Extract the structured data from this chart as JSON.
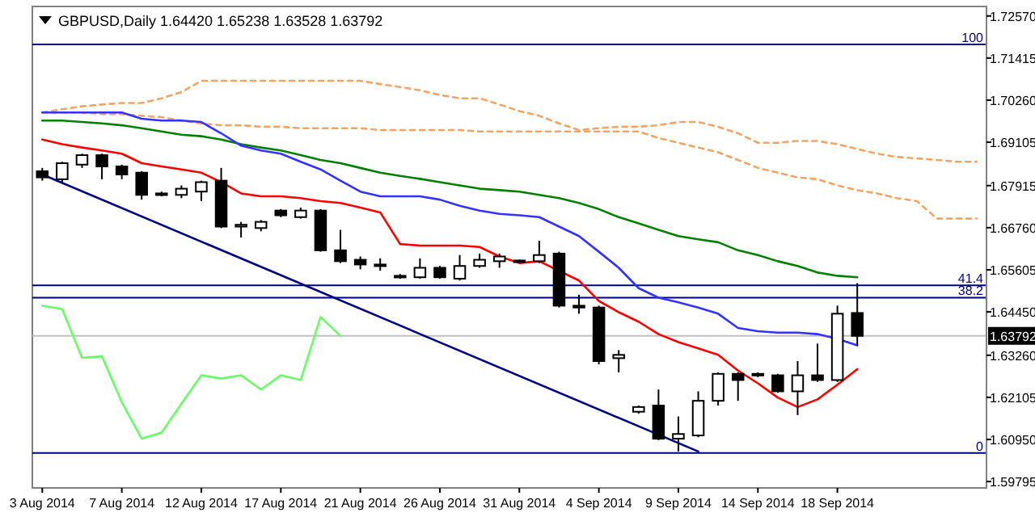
{
  "chart_data": {
    "type": "candlestick",
    "title": "GBPUSD,Daily 1.64420 1.65238 1.63528 1.63792",
    "categories": [
      "3 Aug 2014",
      null,
      null,
      null,
      "7 Aug 2014",
      null,
      null,
      null,
      "12 Aug 2014",
      null,
      null,
      null,
      "17 Aug 2014",
      null,
      null,
      null,
      "21 Aug 2014",
      null,
      null,
      null,
      "26 Aug 2014",
      null,
      null,
      null,
      "31 Aug 2014",
      null,
      null,
      null,
      "4 Sep 2014",
      null,
      null,
      null,
      "9 Sep 2014",
      null,
      null,
      null,
      "14 Sep 2014",
      null,
      null,
      null,
      "18 Sep 2014",
      null,
      null,
      null,
      null,
      null,
      null,
      null
    ],
    "ohlc": [
      [
        1.6831,
        1.684,
        1.6805,
        1.6814
      ],
      [
        1.6809,
        1.6857,
        1.6801,
        1.6853
      ],
      [
        1.6849,
        1.6879,
        1.684,
        1.6875
      ],
      [
        1.6875,
        1.6879,
        1.6809,
        1.6844
      ],
      [
        1.6844,
        1.6849,
        1.6809,
        1.6822
      ],
      [
        1.6827,
        1.6831,
        1.6753,
        1.6766
      ],
      [
        1.677,
        1.6775,
        1.6762,
        1.6766
      ],
      [
        1.6766,
        1.6792,
        1.6757,
        1.6783
      ],
      [
        1.6775,
        1.6805,
        1.6749,
        1.6801
      ],
      [
        1.6805,
        1.684,
        1.6675,
        1.6679
      ],
      [
        1.6679,
        1.6692,
        1.6649,
        1.6684
      ],
      [
        1.6675,
        1.6697,
        1.6666,
        1.6692
      ],
      [
        1.6723,
        1.6727,
        1.6705,
        1.671
      ],
      [
        1.6705,
        1.6731,
        1.6701,
        1.6723
      ],
      [
        1.6723,
        1.6727,
        1.661,
        1.6614
      ],
      [
        1.6614,
        1.667,
        1.6579,
        1.6584
      ],
      [
        1.6588,
        1.6597,
        1.6562,
        1.6575
      ],
      [
        1.6575,
        1.6592,
        1.6558,
        1.6571
      ],
      [
        1.6544,
        1.6549,
        1.6536,
        1.654
      ],
      [
        1.654,
        1.6592,
        1.6536,
        1.6566
      ],
      [
        1.6566,
        1.6571,
        1.6536,
        1.654
      ],
      [
        1.6536,
        1.6601,
        1.6531,
        1.6571
      ],
      [
        1.6571,
        1.6605,
        1.6566,
        1.6588
      ],
      [
        1.6584,
        1.6605,
        1.6566,
        1.6597
      ],
      [
        1.6586,
        1.6588,
        1.6579,
        1.6584
      ],
      [
        1.6584,
        1.664,
        1.6579,
        1.6601
      ],
      [
        1.6605,
        1.661,
        1.6457,
        1.6462
      ],
      [
        1.6462,
        1.6492,
        1.644,
        1.6457
      ],
      [
        1.6457,
        1.6462,
        1.6301,
        1.631
      ],
      [
        1.6318,
        1.634,
        1.6279,
        1.6327
      ],
      [
        1.6171,
        1.6188,
        1.6166,
        1.6184
      ],
      [
        1.6188,
        1.6232,
        1.6093,
        1.6097
      ],
      [
        1.6097,
        1.6158,
        1.6062,
        1.611
      ],
      [
        1.6106,
        1.6227,
        1.6101,
        1.6201
      ],
      [
        1.6201,
        1.6279,
        1.6188,
        1.6275
      ],
      [
        1.6275,
        1.6279,
        1.6201,
        1.6258
      ],
      [
        1.6275,
        1.6279,
        1.6266,
        1.6271
      ],
      [
        1.6271,
        1.6275,
        1.6223,
        1.6227
      ],
      [
        1.6227,
        1.631,
        1.6162,
        1.6271
      ],
      [
        1.6271,
        1.6358,
        1.6253,
        1.6258
      ],
      [
        1.6258,
        1.6462,
        1.6253,
        1.644
      ],
      [
        1.6442,
        1.65238,
        1.63528,
        1.63792
      ],
      null,
      null,
      null,
      null,
      null,
      null
    ],
    "series": [
      {
        "type": "line",
        "color": "#f4a460",
        "line_style": "dashed",
        "values": [
          1.6992,
          1.7001,
          1.7009,
          1.7014,
          1.7018,
          1.7018,
          1.7031,
          1.7048,
          1.7079,
          1.7079,
          1.7079,
          1.7079,
          1.7079,
          1.7079,
          1.7079,
          1.7079,
          1.7079,
          1.707,
          1.7062,
          1.7053,
          1.704,
          1.7031,
          1.7031,
          1.7014,
          1.6996,
          1.6983,
          1.6962,
          1.6944,
          1.6949,
          1.6953,
          1.6953,
          1.6957,
          1.6966,
          1.6966,
          1.6953,
          1.6935,
          1.6909,
          1.6909,
          1.6914,
          1.6914,
          1.6905,
          1.6892,
          1.6879,
          1.687,
          1.6866,
          1.6862,
          1.6857,
          1.6857
        ]
      },
      {
        "type": "line",
        "color": "#f4a460",
        "line_style": "dashed",
        "values": [
          1.6992,
          1.6992,
          1.6992,
          1.6988,
          1.6988,
          1.6983,
          1.6979,
          1.697,
          1.6962,
          1.6957,
          1.6957,
          1.6953,
          1.6953,
          1.6949,
          1.6949,
          1.6949,
          1.6949,
          1.6944,
          1.6944,
          1.6944,
          1.6944,
          1.6944,
          1.694,
          1.694,
          1.694,
          1.694,
          1.694,
          1.694,
          1.694,
          1.694,
          1.694,
          1.6922,
          1.6909,
          1.6896,
          1.6883,
          1.6862,
          1.684,
          1.6827,
          1.6814,
          1.6809,
          1.6792,
          1.6779,
          1.677,
          1.6757,
          1.6749,
          1.6701,
          1.6701,
          1.6701
        ]
      },
      {
        "type": "line",
        "color": "#008000",
        "values": [
          1.697,
          1.697,
          1.6966,
          1.6962,
          1.6957,
          1.6949,
          1.694,
          1.6931,
          1.6927,
          1.6918,
          1.6905,
          1.6896,
          1.6888,
          1.6875,
          1.6862,
          1.6853,
          1.684,
          1.6827,
          1.6818,
          1.681,
          1.6801,
          1.6792,
          1.6783,
          1.6779,
          1.6775,
          1.6766,
          1.6757,
          1.6744,
          1.6727,
          1.6705,
          1.6688,
          1.667,
          1.6653,
          1.6644,
          1.6636,
          1.6614,
          1.6601,
          1.6584,
          1.6571,
          1.6553,
          1.6544,
          1.654,
          null,
          null,
          null,
          null,
          null,
          null
        ]
      },
      {
        "type": "line",
        "color": "#3333ff",
        "values": [
          1.6992,
          1.6992,
          1.6992,
          1.6992,
          1.6992,
          1.6975,
          1.697,
          1.697,
          1.6966,
          1.6935,
          1.6901,
          1.6888,
          1.6879,
          1.6857,
          1.6836,
          1.6805,
          1.6775,
          1.6762,
          1.6762,
          1.6762,
          1.6753,
          1.6736,
          1.6723,
          1.6714,
          1.671,
          1.6705,
          1.6679,
          1.6653,
          1.661,
          1.6566,
          1.651,
          1.6484,
          1.6471,
          1.6457,
          1.644,
          1.6401,
          1.6392,
          1.6388,
          1.6388,
          1.6384,
          1.6371,
          1.6353,
          null,
          null,
          null,
          null,
          null,
          null
        ]
      },
      {
        "type": "line",
        "color": "#ff0000",
        "values": [
          1.6918,
          1.6905,
          1.6896,
          1.6888,
          1.6879,
          1.6853,
          1.6844,
          1.6836,
          1.6827,
          1.6801,
          1.677,
          1.6762,
          1.6762,
          1.6757,
          1.6749,
          1.6744,
          1.6731,
          1.6718,
          1.6631,
          1.6627,
          1.6627,
          1.6627,
          1.6623,
          1.6597,
          1.6579,
          1.6584,
          null,
          1.6531,
          1.6475,
          1.6444,
          1.6418,
          1.6384,
          1.6362,
          1.6345,
          1.6327,
          1.6284,
          1.6249,
          1.621,
          1.6184,
          1.6205,
          1.6245,
          1.6288,
          null,
          null,
          null,
          null,
          null,
          null
        ]
      },
      {
        "type": "line",
        "color": "#66ff66",
        "values": [
          1.6462,
          1.6453,
          1.6319,
          1.6323,
          1.6197,
          1.6097,
          1.6114,
          1.6193,
          1.6271,
          1.6262,
          1.6271,
          1.6232,
          1.6271,
          1.6258,
          1.6431,
          1.6379,
          null,
          null,
          null,
          null,
          null,
          null,
          null,
          null,
          null,
          null,
          null,
          null,
          null,
          null,
          null,
          null,
          null,
          null,
          null,
          null,
          null,
          null,
          null,
          null,
          null,
          null,
          null,
          null,
          null,
          null,
          null,
          null
        ]
      },
      {
        "type": "line",
        "color": "#000080",
        "values": [
          1.6822,
          null,
          null,
          null,
          null,
          null,
          null,
          null,
          null,
          null,
          null,
          null,
          null,
          null,
          null,
          null,
          null,
          null,
          null,
          null,
          null,
          null,
          null,
          null,
          null,
          null,
          null,
          null,
          null,
          null,
          null,
          null,
          null,
          1.6062,
          null,
          null,
          null,
          null,
          null,
          null,
          null,
          null,
          null,
          null,
          null,
          null,
          null,
          null
        ]
      }
    ],
    "annotations": [
      {
        "text": "100",
        "y": 1.7179
      },
      {
        "text": "41.4",
        "y": 1.6518
      },
      {
        "text": "38.2",
        "y": 1.6484
      },
      {
        "text": "0",
        "y": 1.6058
      }
    ],
    "ref_lines": [
      {
        "axis": "y",
        "value": 1.7179,
        "color": "#000080"
      },
      {
        "axis": "y",
        "value": 1.6518,
        "color": "#000080"
      },
      {
        "axis": "y",
        "value": 1.6484,
        "color": "#000080"
      },
      {
        "axis": "y",
        "value": 1.6058,
        "color": "#000080"
      },
      {
        "axis": "y",
        "value": 1.63792,
        "label": "1.63792",
        "color": "#c0c0c0"
      }
    ],
    "ylim": [
      1.5962,
      1.7283
    ],
    "yticks": [
      {
        "value": 1.7257,
        "label": "1.72570"
      },
      1.71415,
      {
        "value": 1.7026,
        "label": "1.70260"
      },
      1.69105,
      1.67915,
      {
        "value": 1.6676,
        "label": "1.66760"
      },
      1.65605,
      {
        "value": 1.6445,
        "label": "1.64450"
      },
      {
        "value": 1.6326,
        "label": "1.63260"
      },
      1.62105,
      {
        "value": 1.6095,
        "label": "1.60950"
      },
      1.59795
    ]
  }
}
